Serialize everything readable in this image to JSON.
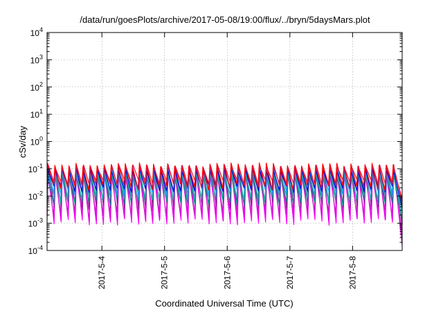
{
  "chart_data": {
    "type": "line",
    "title": "/data/run/goesPlots/archive/2017-05-08/19:00/flux/../bryn/5daysMars.plot",
    "xlabel": "Coordinated Universal Time (UTC)",
    "ylabel": "cSv/day",
    "x_range": [
      "2017-05-03T03:00",
      "2017-05-08T19:00"
    ],
    "x_tick_labels": [
      "2017-5-4",
      "2017-5-5",
      "2017-5-6",
      "2017-5-7",
      "2017-5-8"
    ],
    "x_tick_values": [
      "2017-05-04T00:00",
      "2017-05-05T00:00",
      "2017-05-06T00:00",
      "2017-05-07T00:00",
      "2017-05-08T00:00"
    ],
    "y_scale": "log",
    "y_range": [
      0.0001,
      10000
    ],
    "y_tick_values": [
      0.0001,
      0.001,
      0.01,
      0.1,
      1,
      10,
      100,
      1000,
      10000
    ],
    "y_tick_labels": [
      {
        "base": "10",
        "exp": "-4"
      },
      {
        "base": "10",
        "exp": "-3"
      },
      {
        "base": "10",
        "exp": "-2"
      },
      {
        "base": "10",
        "exp": "-1"
      },
      {
        "base": "10",
        "exp": "0"
      },
      {
        "base": "10",
        "exp": "1"
      },
      {
        "base": "10",
        "exp": "2"
      },
      {
        "base": "10",
        "exp": "3"
      },
      {
        "base": "10",
        "exp": "4"
      }
    ],
    "grid": true,
    "legend": "none",
    "pattern": {
      "description_of_values": "sawtooth daily-orbit pattern, peaks near 0.1 and troughs 0.001-0.03 depending on series",
      "cycle_hours": 2.7,
      "end_drop_time": "2017-05-08T16:00"
    },
    "series": [
      {
        "color": "#ff00ff",
        "peak": 0.11,
        "trough": 0.0011,
        "end_value": 0.00015
      },
      {
        "color": "#e600e6",
        "peak": 0.09,
        "trough": 0.0016,
        "end_value": 0.00025
      },
      {
        "color": "#cc22cc",
        "peak": 0.07,
        "trough": 0.0025,
        "end_value": 0.0004
      },
      {
        "color": "#8b1a8b",
        "peak": 0.12,
        "trough": 0.0045,
        "end_value": 0.0008
      },
      {
        "color": "#008b8b",
        "peak": 0.06,
        "trough": 0.006,
        "end_value": 0.0012
      },
      {
        "color": "#20b2aa",
        "peak": 0.08,
        "trough": 0.009,
        "end_value": 0.002
      },
      {
        "color": "#1e90ff",
        "peak": 0.1,
        "trough": 0.013,
        "end_value": 0.003
      },
      {
        "color": "#0000cd",
        "peak": 0.09,
        "trough": 0.018,
        "end_value": 0.004
      },
      {
        "color": "#ff0000",
        "peak": 0.14,
        "trough": 0.022,
        "end_value": 0.006
      },
      {
        "color": "#dc143c",
        "peak": 0.12,
        "trough": 0.03,
        "end_value": 0.008
      }
    ]
  }
}
